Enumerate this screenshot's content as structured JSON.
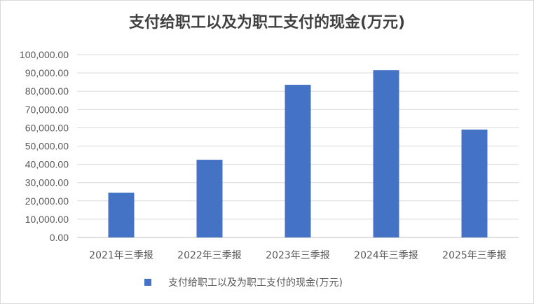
{
  "chart_data": {
    "type": "bar",
    "title": "支付给职工以及为职工支付的现金(万元)",
    "categories": [
      "2021年三季报",
      "2022年三季报",
      "2023年三季报",
      "2024年三季报",
      "2025年三季报"
    ],
    "series": [
      {
        "name": "支付给职工以及为职工支付的现金(万元)",
        "values": [
          24500,
          42500,
          83500,
          91500,
          59000
        ],
        "color": "#4472c4"
      }
    ],
    "ylim": [
      0,
      100000
    ],
    "yticks": [
      "0.00",
      "10,000.00",
      "20,000.00",
      "30,000.00",
      "40,000.00",
      "50,000.00",
      "60,000.00",
      "70,000.00",
      "80,000.00",
      "90,000.00",
      "100,000.00"
    ],
    "grid": true,
    "legend_position": "bottom"
  }
}
